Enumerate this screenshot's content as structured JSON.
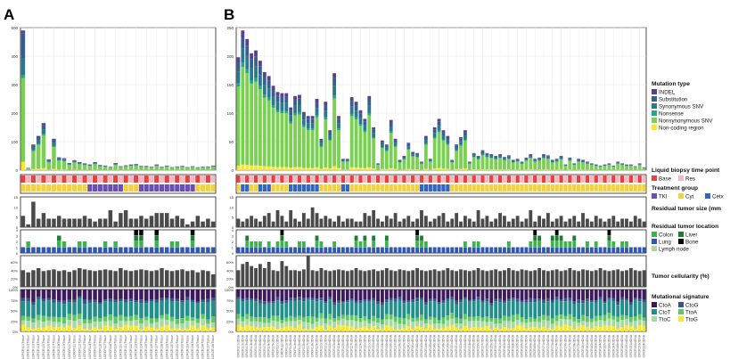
{
  "panels": {
    "a": {
      "letter": "A"
    },
    "b": {
      "letter": "B"
    }
  },
  "legend": {
    "mutation_type": {
      "title": "Mutation type",
      "items": [
        {
          "label": "INDEL",
          "color": "#5b3f8c"
        },
        {
          "label": "Substitution",
          "color": "#35608d"
        },
        {
          "label": "Synonymous SNV",
          "color": "#2a788e"
        },
        {
          "label": "Nonsense",
          "color": "#22a884"
        },
        {
          "label": "Nonsynonymous SNV",
          "color": "#7ad151"
        },
        {
          "label": "Non-coding region",
          "color": "#fde725"
        }
      ]
    },
    "timepoint": {
      "title": "Liquid biopsy time point",
      "items": [
        {
          "label": "Base",
          "color": "#e8403f"
        },
        {
          "label": "Res",
          "color": "#f7b6c2"
        }
      ]
    },
    "treatment": {
      "title": "Treatment group",
      "items": [
        {
          "label": "TKI",
          "color": "#6a4fb4"
        },
        {
          "label": "Cyt",
          "color": "#f3d23c"
        },
        {
          "label": "Cetx",
          "color": "#2f67c1"
        }
      ]
    },
    "tumor_size": {
      "title": "Residual tumor size (mm"
    },
    "location": {
      "title": "Residual tumor location",
      "items": [
        {
          "label": "Colon",
          "color": "#3bb44a"
        },
        {
          "label": "Liver",
          "color": "#1e7d32"
        },
        {
          "label": "Lung",
          "color": "#2f57b8"
        },
        {
          "label": "Bone",
          "color": "#000000"
        },
        {
          "label": "Lymph node",
          "color": "#b5d39b"
        }
      ]
    },
    "cellularity": {
      "title": "Tumor cellularity (%)"
    },
    "signature": {
      "title": "Mutational signature",
      "items": [
        {
          "label": "CtoA",
          "color": "#3d1a5c"
        },
        {
          "label": "CtoG",
          "color": "#3b528b"
        },
        {
          "label": "CtoT",
          "color": "#21908c"
        },
        {
          "label": "TtoA",
          "color": "#5ec962"
        },
        {
          "label": "TtoC",
          "color": "#a7d9a0"
        },
        {
          "label": "TtoG",
          "color": "#fde725"
        }
      ]
    }
  },
  "chart_data": [
    {
      "type": "bar",
      "panel": "A",
      "stacked": true,
      "ylim": [
        0,
        500
      ],
      "yticks": [
        "0",
        "100",
        "200",
        "300",
        "400",
        "500"
      ],
      "sample_prefix": "SLCRCR",
      "totals": [
        490,
        8,
        90,
        120,
        165,
        38,
        110,
        45,
        42,
        25,
        35,
        28,
        24,
        20,
        28,
        18,
        16,
        12,
        25,
        14,
        17,
        20,
        22,
        15,
        15,
        12,
        20,
        12,
        16,
        11,
        13,
        15,
        11,
        14,
        10,
        12,
        13,
        16
      ],
      "tumor_size": [
        4,
        1,
        9,
        3,
        5,
        3,
        3,
        4,
        3,
        3,
        3,
        3,
        4,
        3,
        2,
        3,
        3,
        6,
        2,
        5,
        6,
        3,
        3,
        4,
        3,
        4,
        5,
        5,
        5,
        3,
        4,
        3,
        1,
        2,
        4,
        2,
        3,
        2
      ],
      "cellularity": [
        40,
        35,
        40,
        45,
        38,
        40,
        42,
        38,
        40,
        36,
        40,
        45,
        42,
        40,
        38,
        40,
        42,
        40,
        38,
        45,
        40,
        38,
        40,
        42,
        40,
        38,
        40,
        45,
        40,
        38,
        40,
        42,
        38,
        40,
        35,
        40,
        38,
        30
      ]
    },
    {
      "type": "bar",
      "panel": "B",
      "stacked": true,
      "ylim": [
        0,
        250
      ],
      "yticks": [
        "0",
        "50",
        "100",
        "150",
        "200",
        "250"
      ],
      "sample_prefix": "CRCR",
      "totals": [
        198,
        245,
        230,
        205,
        210,
        192,
        172,
        165,
        148,
        137,
        135,
        135,
        110,
        130,
        132,
        102,
        95,
        95,
        125,
        55,
        120,
        70,
        170,
        95,
        20,
        20,
        128,
        120,
        105,
        90,
        130,
        75,
        12,
        52,
        45,
        88,
        55,
        18,
        25,
        48,
        32,
        30,
        15,
        60,
        20,
        75,
        90,
        70,
        60,
        18,
        45,
        58,
        70,
        15,
        30,
        25,
        35,
        30,
        28,
        25,
        28,
        23,
        26,
        18,
        20,
        15,
        22,
        28,
        20,
        22,
        28,
        26,
        18,
        20,
        25,
        10,
        22,
        12,
        20,
        18,
        15,
        12,
        10,
        8,
        10,
        12,
        8,
        15,
        12,
        10,
        10,
        7,
        12,
        5
      ],
      "tumor_size": [
        3,
        2,
        3,
        4,
        3,
        2,
        4,
        5,
        2,
        6,
        4,
        2,
        6,
        3,
        2,
        5,
        3,
        7,
        5,
        3,
        4,
        3,
        2,
        4,
        2,
        3,
        3,
        2,
        2,
        5,
        4,
        6,
        3,
        2,
        4,
        3,
        5,
        2,
        3,
        4,
        2,
        3,
        6,
        4,
        2,
        3,
        4,
        5,
        2,
        3,
        5,
        2,
        4,
        3,
        2,
        6,
        3,
        4,
        2,
        3,
        5,
        4,
        2,
        3,
        4,
        2,
        3,
        6,
        2,
        4,
        3,
        5,
        2,
        3,
        4,
        2,
        3,
        4,
        2,
        5,
        3,
        2,
        4,
        3,
        2,
        3,
        4,
        2,
        3,
        3,
        2,
        4,
        3,
        2
      ],
      "cellularity": [
        40,
        55,
        60,
        50,
        45,
        55,
        45,
        60,
        40,
        38,
        62,
        50,
        40,
        40,
        38,
        42,
        75,
        40,
        38,
        45,
        40,
        38,
        40,
        42,
        40,
        38,
        40,
        45,
        40,
        38,
        40,
        42,
        38,
        40,
        45,
        40,
        38,
        42,
        40,
        38,
        40,
        45,
        40,
        38,
        40,
        42,
        38,
        40,
        45,
        40,
        38,
        42,
        40,
        38,
        40,
        45,
        40,
        38,
        40,
        42,
        38,
        40,
        45,
        40,
        38,
        42,
        40,
        38,
        40,
        45,
        40,
        38,
        40,
        42,
        38,
        40,
        45,
        40,
        38,
        42,
        40,
        38,
        40,
        45,
        40,
        38,
        40,
        42,
        38,
        40,
        45,
        40,
        38,
        40
      ]
    }
  ],
  "axes": {
    "size_ticks": [
      "0",
      "5",
      "10",
      "15"
    ],
    "loc_ticks": [
      "0",
      "1",
      "2",
      "3",
      "4"
    ],
    "cell_ticks": [
      "0%",
      "20%",
      "40%",
      "60%"
    ],
    "sig_ticks": [
      "0%",
      "25%",
      "50%",
      "75%",
      "100%"
    ]
  }
}
